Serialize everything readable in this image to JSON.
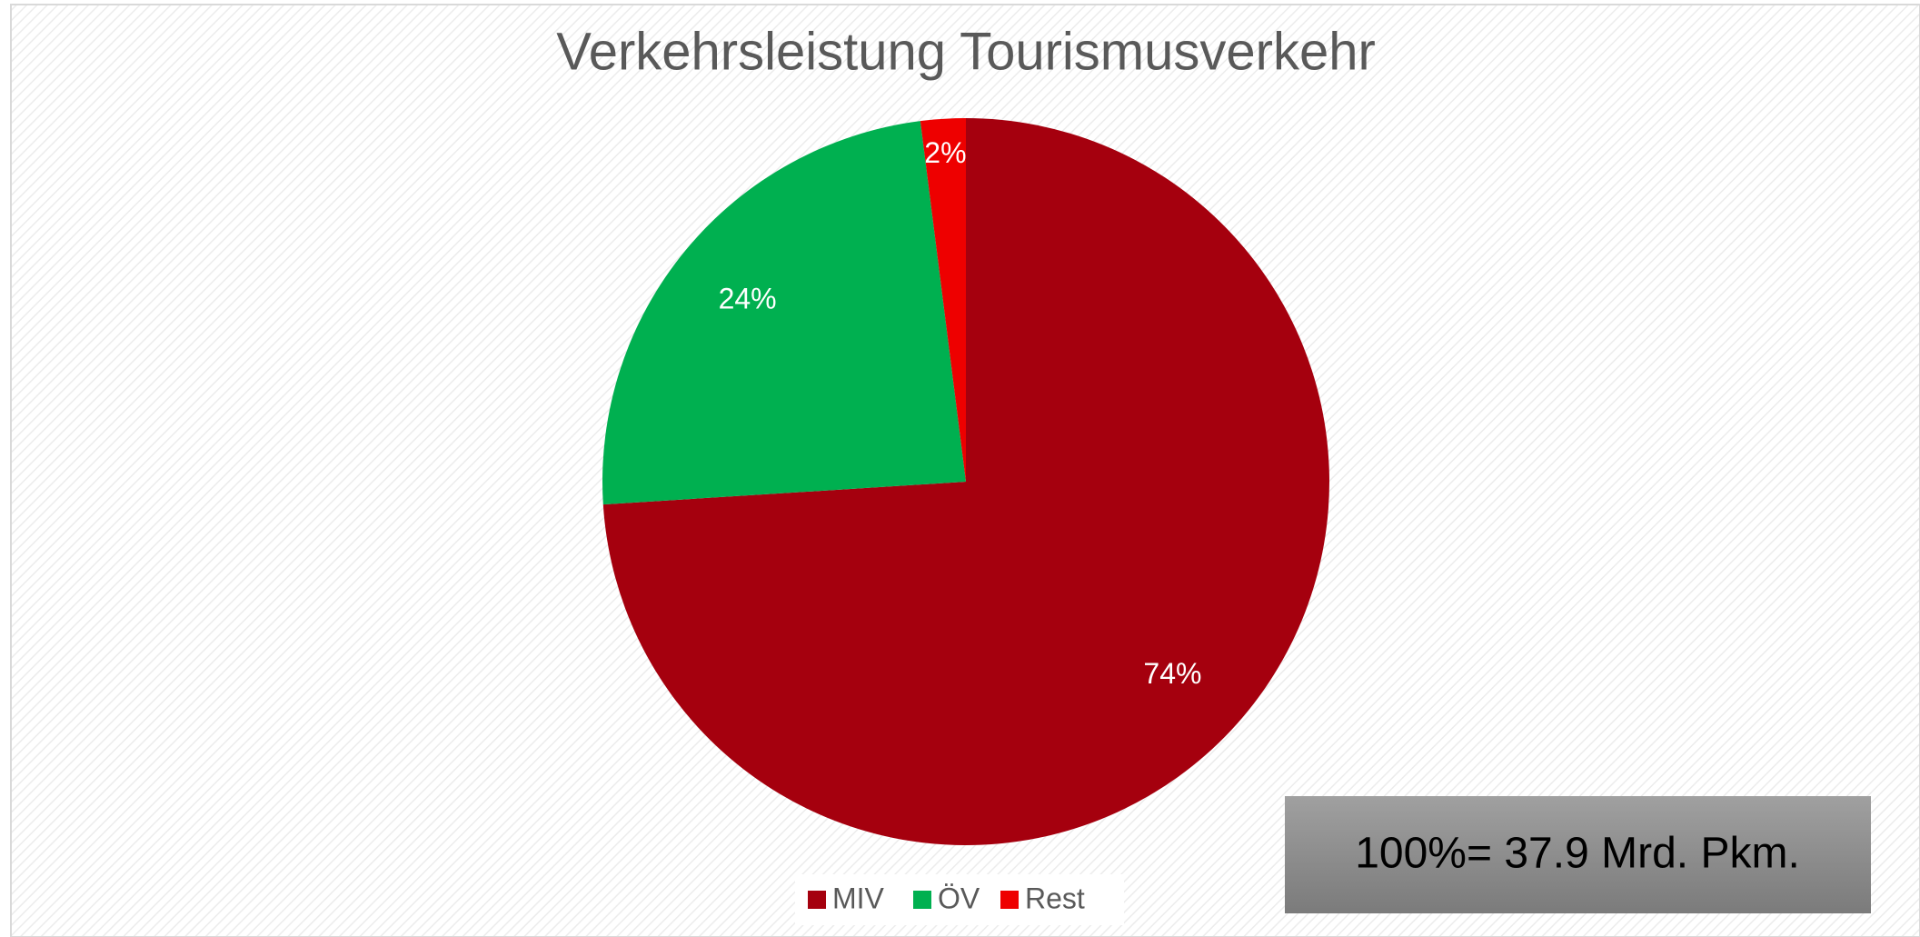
{
  "chart_data": {
    "type": "pie",
    "title": "Verkehrsleistung Tourismusverkehr",
    "categories": [
      "MIV",
      "ÖV",
      "Rest"
    ],
    "values": [
      74,
      24,
      2
    ],
    "value_labels": [
      "74%",
      "24%",
      "2%"
    ],
    "colors": [
      "#a5000e",
      "#00b050",
      "#ee0000"
    ],
    "legend": "bottom",
    "annotation": "100%= 37.9 Mrd. Pkm."
  }
}
